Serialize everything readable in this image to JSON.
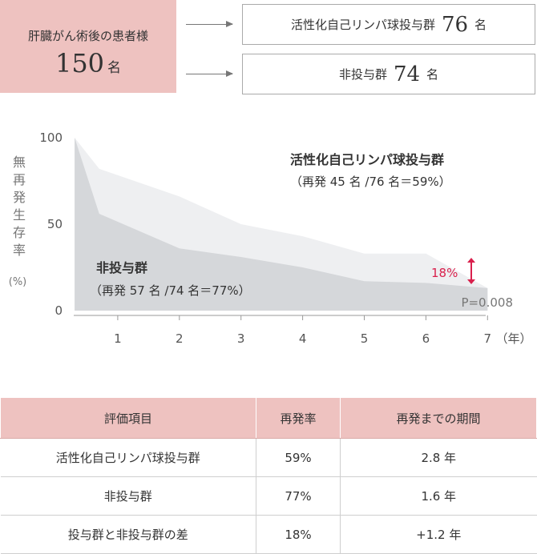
{
  "patients": {
    "label": "肝臓がん術後の患者様",
    "count": "150",
    "unit": "名"
  },
  "groups": [
    {
      "label": "活性化自己リンパ球投与群",
      "count": "76",
      "unit": "名"
    },
    {
      "label": "非投与群",
      "count": "74",
      "unit": "名"
    }
  ],
  "chart_data": {
    "type": "area",
    "ylabel": "無再発生存率",
    "ylabel_unit": "(%)",
    "xlabel_unit": "（年）",
    "x_ticks": [
      1,
      2,
      3,
      4,
      5,
      6,
      7
    ],
    "y_ticks": [
      0,
      50,
      100
    ],
    "xlim": [
      0,
      7
    ],
    "ylim": [
      0,
      100
    ],
    "series": [
      {
        "name": "活性化自己リンパ球投与群",
        "annotation": "（再発 45 名 /76 名＝59%）",
        "color": "#eeeff1",
        "x": [
          0,
          0.7,
          2,
          3,
          4,
          5,
          6,
          7
        ],
        "y": [
          100,
          82,
          66,
          50,
          43,
          33,
          33,
          13
        ]
      },
      {
        "name": "非投与群",
        "annotation": "（再発 57 名 /74 名＝77%）",
        "color": "#d5d7da",
        "x": [
          0,
          0.7,
          2,
          3,
          4,
          5,
          6,
          7
        ],
        "y": [
          100,
          56,
          36,
          31,
          25,
          17,
          16,
          13
        ]
      }
    ],
    "diff_label": "18%",
    "diff_color": "#d9204c",
    "p_value": "P=0.008"
  },
  "table": {
    "headers": [
      "評価項目",
      "再発率",
      "再発までの期間"
    ],
    "rows": [
      [
        "活性化自己リンパ球投与群",
        "59%",
        "2.8 年"
      ],
      [
        "非投与群",
        "77%",
        "1.6 年"
      ],
      [
        "投与群と非投与群の差",
        "18%",
        "+1.2 年"
      ]
    ]
  }
}
